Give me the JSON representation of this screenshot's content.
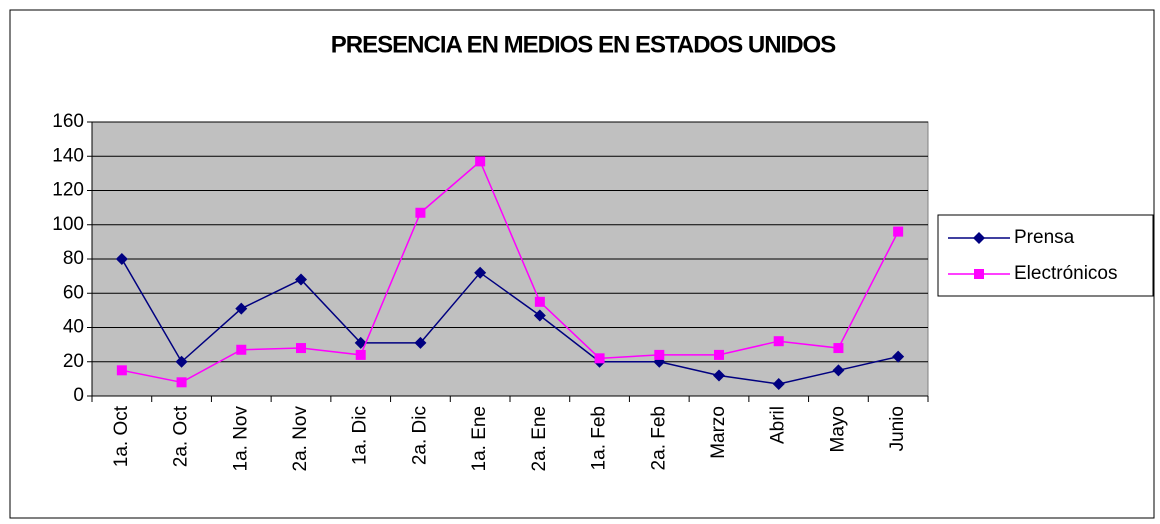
{
  "chart_data": {
    "type": "line",
    "title": "PRESENCIA EN MEDIOS EN ESTADOS UNIDOS",
    "categories": [
      "1a. Oct",
      "2a. Oct",
      "1a. Nov",
      "2a. Nov",
      "1a. Dic",
      "2a. Dic",
      "1a. Ene",
      "2a. Ene",
      "1a. Feb",
      "2a. Feb",
      "Marzo",
      "Abril",
      "Mayo",
      "Junio"
    ],
    "series": [
      {
        "name": "Prensa",
        "color": "#000080",
        "marker": "diamond",
        "values": [
          80,
          20,
          51,
          68,
          31,
          31,
          72,
          47,
          20,
          20,
          12,
          7,
          15,
          23
        ]
      },
      {
        "name": "Electrónicos",
        "color": "#ff00ff",
        "marker": "square",
        "values": [
          15,
          8,
          27,
          28,
          24,
          107,
          137,
          55,
          22,
          24,
          24,
          32,
          28,
          96
        ]
      }
    ],
    "ylim": [
      0,
      160
    ],
    "yticks": [
      0,
      20,
      40,
      60,
      80,
      100,
      120,
      140,
      160
    ],
    "grid": true,
    "legend": "right"
  }
}
